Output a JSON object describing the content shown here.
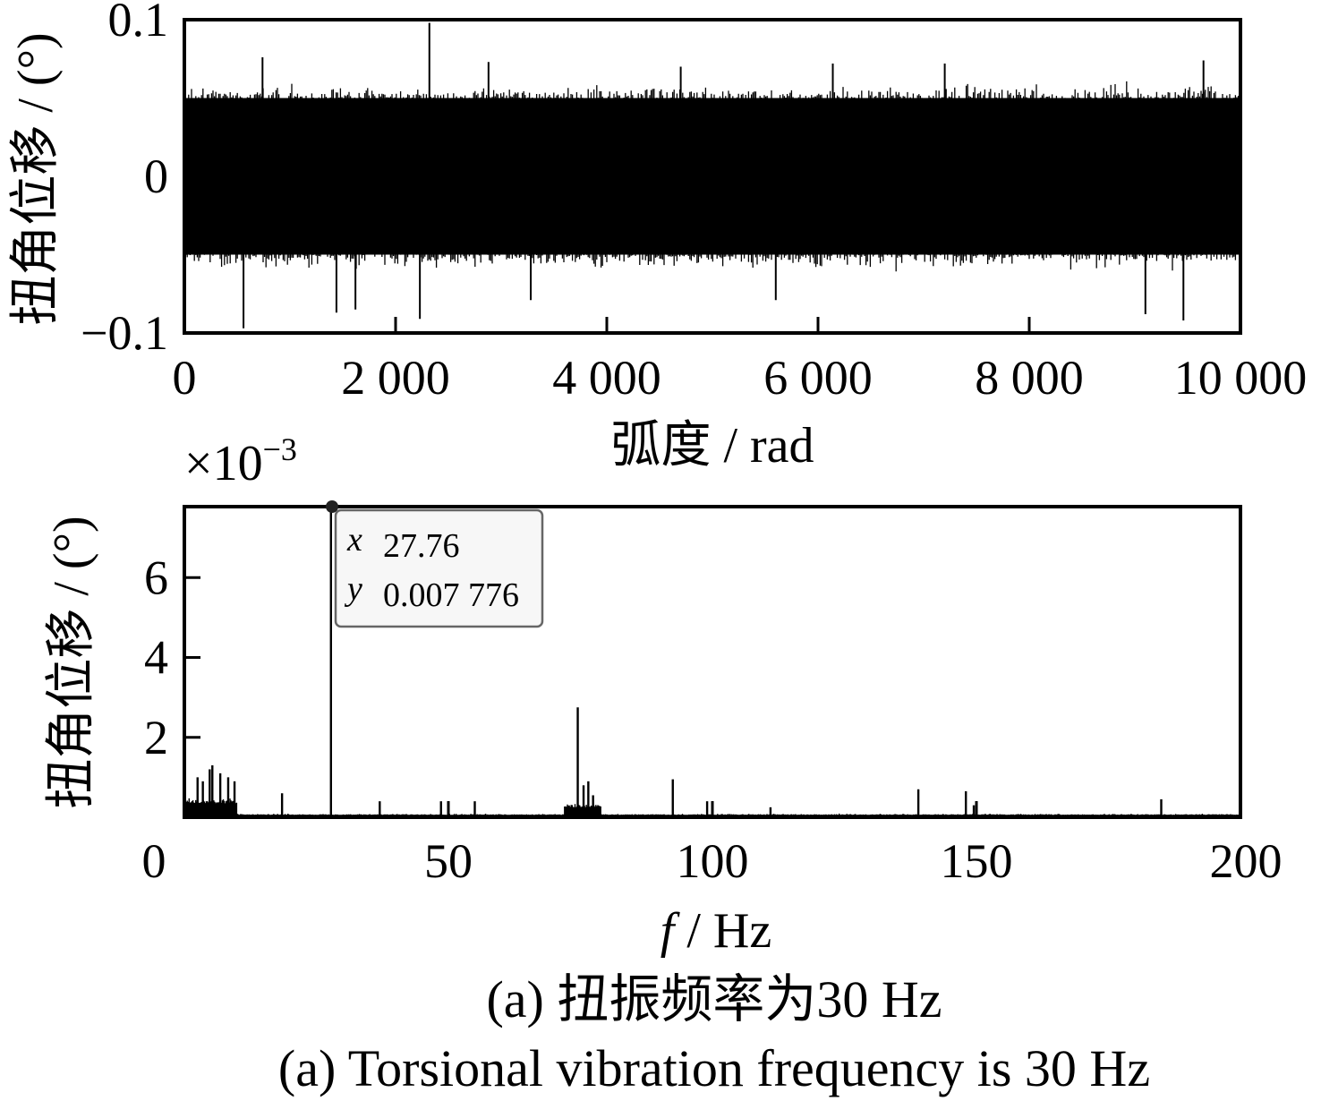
{
  "chart_data": [
    {
      "type": "line",
      "ylabel": "扭角位移 / (°)",
      "xlabel": "弧度 / rad",
      "xlim": [
        0,
        10000
      ],
      "ylim": [
        -0.1,
        0.1
      ],
      "xticks": [
        0,
        2000,
        4000,
        6000,
        8000,
        10000
      ],
      "xtick_labels": [
        "0",
        "2 000",
        "4 000",
        "6 000",
        "8 000",
        "10 000"
      ],
      "yticks": [
        -0.1,
        0,
        0.1
      ],
      "ytick_labels": [
        "−0.1",
        "0",
        "0.1"
      ],
      "series": [
        {
          "description_note": "dense random-like oscillation centered at 0",
          "envelope_typical": [
            -0.05,
            0.05
          ],
          "peaks": [
            {
              "x": 2320,
              "y": 0.098
            },
            {
              "x": 560,
              "y": -0.097
            },
            {
              "x": 2230,
              "y": -0.091
            },
            {
              "x": 9460,
              "y": -0.092
            },
            {
              "x": 1440,
              "y": -0.087
            },
            {
              "x": 3280,
              "y": -0.079
            },
            {
              "x": 9100,
              "y": -0.088
            },
            {
              "x": 740,
              "y": 0.076
            },
            {
              "x": 2880,
              "y": 0.073
            },
            {
              "x": 4700,
              "y": 0.07
            },
            {
              "x": 7200,
              "y": 0.072
            },
            {
              "x": 9650,
              "y": 0.074
            },
            {
              "x": 1620,
              "y": -0.085
            },
            {
              "x": 5600,
              "y": -0.079
            },
            {
              "x": 6140,
              "y": 0.072
            }
          ]
        }
      ]
    },
    {
      "type": "line",
      "ylabel": "扭角位移 / (°)",
      "xlabel_italic": "f",
      "xlabel_rest": " / Hz",
      "multiplier": "×10",
      "multiplier_exp": "−3",
      "xlim": [
        0,
        200
      ],
      "ylim": [
        0,
        7.776
      ],
      "xticks": [
        0,
        50,
        100,
        150,
        200
      ],
      "xtick_labels": [
        "0",
        "50",
        "100",
        "150",
        "200"
      ],
      "yticks": [
        2,
        4,
        6
      ],
      "ytick_labels": [
        "2",
        "4",
        "6"
      ],
      "series": [
        {
          "peaks": [
            {
              "x": 2.5,
              "y": 1.0
            },
            {
              "x": 3.5,
              "y": 0.9
            },
            {
              "x": 4.8,
              "y": 1.2
            },
            {
              "x": 5.3,
              "y": 1.3
            },
            {
              "x": 6.8,
              "y": 1.1
            },
            {
              "x": 8.3,
              "y": 1.0
            },
            {
              "x": 9.5,
              "y": 0.9
            },
            {
              "x": 18.5,
              "y": 0.6
            },
            {
              "x": 27.76,
              "y": 7.776
            },
            {
              "x": 37.0,
              "y": 0.4
            },
            {
              "x": 48.6,
              "y": 0.4
            },
            {
              "x": 55.0,
              "y": 0.4
            },
            {
              "x": 74.5,
              "y": 2.75
            },
            {
              "x": 75.6,
              "y": 0.8
            },
            {
              "x": 76.5,
              "y": 0.9
            },
            {
              "x": 77.4,
              "y": 0.55
            },
            {
              "x": 92.5,
              "y": 0.95
            },
            {
              "x": 99.0,
              "y": 0.4
            },
            {
              "x": 111.0,
              "y": 0.25
            },
            {
              "x": 139.0,
              "y": 0.7
            },
            {
              "x": 148.0,
              "y": 0.65
            },
            {
              "x": 149.5,
              "y": 0.3
            },
            {
              "x": 185.0,
              "y": 0.45
            }
          ]
        }
      ],
      "datatip": {
        "x_key": "x",
        "x_value": "27.76",
        "y_key": "y",
        "y_value": "0.007 776"
      }
    }
  ],
  "captions": {
    "zh": "(a)  扭振频率为30 Hz",
    "en": "(a)  Torsional vibration frequency is 30 Hz"
  }
}
